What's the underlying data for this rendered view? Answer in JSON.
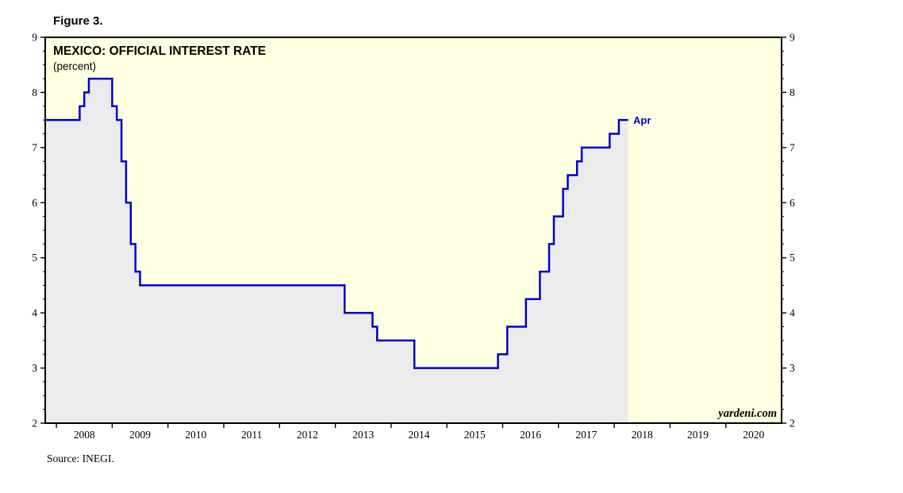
{
  "figure_label": "Figure 3.",
  "source": "Source: INEGI.",
  "watermark": "yardeni.com",
  "chart_data": {
    "type": "line",
    "step": true,
    "title": "MEXICO: OFFICIAL INTEREST RATE",
    "subtitle": "(percent)",
    "xlim": [
      2007.8,
      2021.0
    ],
    "ylim": [
      2,
      9
    ],
    "x_tick_years": [
      2008,
      2009,
      2010,
      2011,
      2012,
      2013,
      2014,
      2015,
      2016,
      2017,
      2018,
      2019,
      2020
    ],
    "y_ticks": [
      2,
      3,
      4,
      5,
      6,
      7,
      8,
      9
    ],
    "y_minor_step": 0.25,
    "grid": false,
    "legend": "none",
    "end_label": "Apr",
    "colors": {
      "line": "#0000CC",
      "area_fill": "#EBEBEB",
      "plot_background": "#FFFFE1",
      "frame": "#000000",
      "end_label": "#0000CC"
    },
    "series": [
      {
        "name": "Mexico official interest rate (percent)",
        "points": [
          [
            2007.8,
            7.5
          ],
          [
            2008.417,
            7.75
          ],
          [
            2008.5,
            8.0
          ],
          [
            2008.583,
            8.25
          ],
          [
            2009.0,
            7.75
          ],
          [
            2009.083,
            7.5
          ],
          [
            2009.167,
            6.75
          ],
          [
            2009.25,
            6.0
          ],
          [
            2009.333,
            5.25
          ],
          [
            2009.417,
            4.75
          ],
          [
            2009.5,
            4.5
          ],
          [
            2013.167,
            4.0
          ],
          [
            2013.667,
            3.75
          ],
          [
            2013.75,
            3.5
          ],
          [
            2014.417,
            3.0
          ],
          [
            2015.917,
            3.25
          ],
          [
            2016.083,
            3.75
          ],
          [
            2016.417,
            4.25
          ],
          [
            2016.667,
            4.75
          ],
          [
            2016.833,
            5.25
          ],
          [
            2016.917,
            5.75
          ],
          [
            2017.083,
            6.25
          ],
          [
            2017.167,
            6.5
          ],
          [
            2017.333,
            6.75
          ],
          [
            2017.417,
            7.0
          ],
          [
            2017.917,
            7.25
          ],
          [
            2018.083,
            7.5
          ],
          [
            2018.25,
            7.5
          ]
        ]
      }
    ]
  }
}
